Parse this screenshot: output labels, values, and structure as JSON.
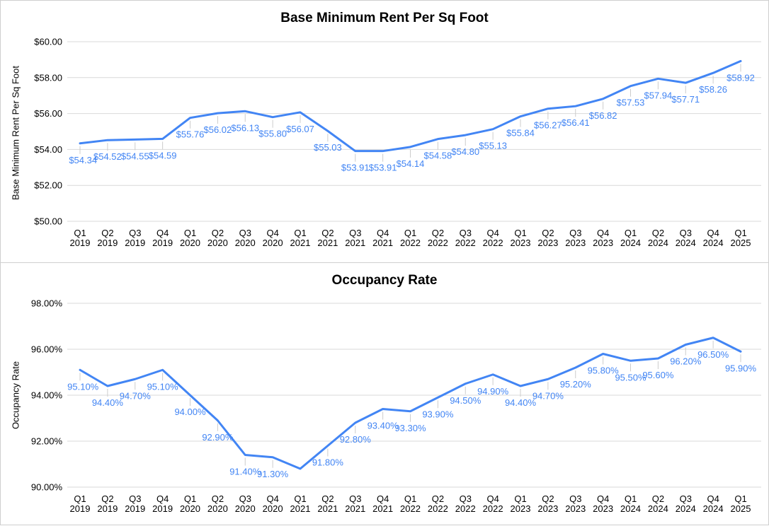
{
  "chart_data": [
    {
      "type": "line",
      "title": "Base Minimum Rent Per Sq Foot",
      "xlabel": "",
      "ylabel": "Base Minimum Rent Per Sq Foot",
      "legend_position": "none",
      "grid": true,
      "line_color": "#4285f4",
      "data_label_color": "#4285f4",
      "ylim": [
        50,
        60
      ],
      "y_ticks_top_to_bottom": [
        "$60.00",
        "$58.00",
        "$56.00",
        "$54.00",
        "$52.00",
        "$50.00"
      ],
      "categories": [
        "Q1 2019",
        "Q2 2019",
        "Q3 2019",
        "Q4 2019",
        "Q1 2020",
        "Q2 2020",
        "Q3 2020",
        "Q4 2020",
        "Q1 2021",
        "Q2 2021",
        "Q3 2021",
        "Q4 2021",
        "Q1 2022",
        "Q2 2022",
        "Q3 2022",
        "Q4 2022",
        "Q1 2023",
        "Q2 2023",
        "Q3 2023",
        "Q4 2023",
        "Q1 2024",
        "Q2 2024",
        "Q3 2024",
        "Q4 2024",
        "Q1 2025"
      ],
      "values": [
        54.34,
        54.52,
        54.55,
        54.59,
        55.76,
        56.02,
        56.13,
        55.8,
        56.07,
        55.03,
        53.91,
        53.91,
        54.14,
        54.58,
        54.8,
        55.13,
        55.84,
        56.27,
        56.41,
        56.82,
        57.53,
        57.94,
        57.71,
        58.26,
        58.92
      ],
      "data_labels": [
        "$54.34",
        "$54.52",
        "$54.55",
        "$54.59",
        "$55.76",
        "$56.02",
        "$56.13",
        "$55.80",
        "$56.07",
        "$55.03",
        "$53.91",
        "$53.91",
        "$54.14",
        "$54.58",
        "$54.80",
        "$55.13",
        "$55.84",
        "$56.27",
        "$56.41",
        "$56.82",
        "$57.53",
        "$57.94",
        "$57.71",
        "$58.26",
        "$58.92"
      ]
    },
    {
      "type": "line",
      "title": "Occupancy Rate",
      "xlabel": "",
      "ylabel": "Occupancy Rate",
      "legend_position": "none",
      "grid": true,
      "line_color": "#4285f4",
      "data_label_color": "#4285f4",
      "ylim": [
        90,
        98
      ],
      "y_ticks_top_to_bottom": [
        "98.00%",
        "96.00%",
        "94.00%",
        "92.00%",
        "90.00%"
      ],
      "categories": [
        "Q1 2019",
        "Q2 2019",
        "Q3 2019",
        "Q4 2019",
        "Q1 2020",
        "Q2 2020",
        "Q3 2020",
        "Q4 2020",
        "Q1 2021",
        "Q2 2021",
        "Q3 2021",
        "Q4 2021",
        "Q1 2022",
        "Q2 2022",
        "Q3 2022",
        "Q4 2022",
        "Q1 2023",
        "Q2 2023",
        "Q3 2023",
        "Q4 2023",
        "Q1 2024",
        "Q2 2024",
        "Q3 2024",
        "Q4 2024",
        "Q1 2025"
      ],
      "values": [
        95.1,
        94.4,
        94.7,
        95.1,
        94.0,
        92.9,
        91.4,
        91.3,
        90.8,
        91.8,
        92.8,
        93.4,
        93.3,
        93.9,
        94.5,
        94.9,
        94.4,
        94.7,
        95.2,
        95.8,
        95.5,
        95.6,
        96.2,
        96.5,
        95.9
      ],
      "data_labels": [
        "95.10%",
        "94.40%",
        "94.70%",
        "95.10%",
        "94.00%",
        "92.90%",
        "91.40%",
        "91.30%",
        "",
        "91.80%",
        "92.80%",
        "93.40%",
        "93.30%",
        "93.90%",
        "94.50%",
        "94.90%",
        "94.40%",
        "94.70%",
        "95.20%",
        "95.80%",
        "95.50%",
        "95.60%",
        "96.20%",
        "96.50%",
        "95.90%"
      ]
    }
  ]
}
